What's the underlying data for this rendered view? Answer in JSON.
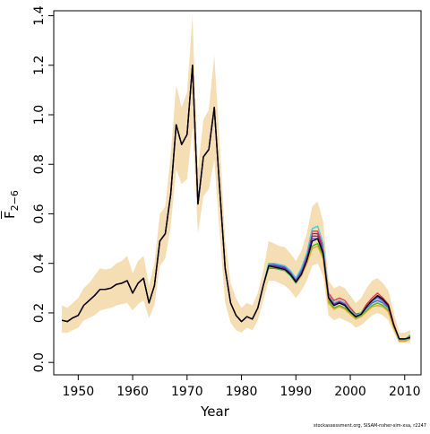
{
  "chart_data": {
    "type": "line",
    "xlabel": "Year",
    "ylabel": {
      "main": "F",
      "subscript": "2−6"
    },
    "xlim": [
      1945.5,
      2013
    ],
    "ylim": [
      -0.05,
      1.42
    ],
    "xticks": [
      "1950",
      "1960",
      "1970",
      "1980",
      "1990",
      "2000",
      "2010"
    ],
    "yticks": [
      "0.0",
      "0.2",
      "0.4",
      "0.6",
      "0.8",
      "1.0",
      "1.2",
      "1.4"
    ],
    "grid": false,
    "band_color": "#f5deb3",
    "x": [
      1947,
      1948,
      1949,
      1950,
      1951,
      1952,
      1953,
      1954,
      1955,
      1956,
      1957,
      1958,
      1959,
      1960,
      1961,
      1962,
      1963,
      1964,
      1965,
      1966,
      1967,
      1968,
      1969,
      1970,
      1971,
      1972,
      1973,
      1974,
      1975,
      1976,
      1977,
      1978,
      1979,
      1980,
      1981,
      1982,
      1983,
      1984,
      1985,
      1986,
      1987,
      1988,
      1989,
      1990,
      1991,
      1992,
      1993,
      1994,
      1995,
      1996,
      1997,
      1998,
      1999,
      2000,
      2001,
      2002,
      2003,
      2004,
      2005,
      2006,
      2007,
      2008,
      2009,
      2010,
      2011
    ],
    "series": [
      {
        "color": "#7b3a52",
        "values": [
          0.17,
          0.165,
          0.18,
          0.19,
          0.23,
          0.25,
          0.27,
          0.295,
          0.295,
          0.3,
          0.315,
          0.32,
          0.33,
          0.28,
          0.32,
          0.34,
          0.24,
          0.31,
          0.49,
          0.52,
          0.68,
          0.96,
          0.88,
          0.92,
          1.2,
          0.64,
          0.83,
          0.86,
          1.03,
          0.7,
          0.38,
          0.24,
          0.19,
          0.165,
          0.185,
          0.175,
          0.22,
          0.31,
          0.39,
          0.39,
          0.385,
          0.38,
          0.36,
          0.33,
          0.36,
          0.42,
          0.52,
          0.52,
          0.46,
          0.27,
          0.24,
          0.25,
          0.24,
          0.21,
          0.19,
          0.2,
          0.23,
          0.25,
          0.27,
          0.25,
          0.23,
          0.15,
          0.095,
          0.095,
          0.1
        ]
      },
      {
        "color": "#e8334b",
        "values": [
          0.17,
          0.165,
          0.18,
          0.19,
          0.23,
          0.25,
          0.27,
          0.295,
          0.295,
          0.3,
          0.315,
          0.32,
          0.33,
          0.28,
          0.32,
          0.34,
          0.24,
          0.31,
          0.49,
          0.52,
          0.68,
          0.96,
          0.88,
          0.92,
          1.2,
          0.64,
          0.83,
          0.86,
          1.03,
          0.7,
          0.38,
          0.24,
          0.19,
          0.165,
          0.185,
          0.175,
          0.22,
          0.31,
          0.39,
          0.39,
          0.385,
          0.38,
          0.36,
          0.33,
          0.37,
          0.43,
          0.53,
          0.53,
          0.47,
          0.28,
          0.25,
          0.26,
          0.25,
          0.22,
          0.195,
          0.2,
          0.235,
          0.26,
          0.28,
          0.26,
          0.235,
          0.155,
          0.095,
          0.095,
          0.1
        ]
      },
      {
        "color": "#3cb44b",
        "values": [
          0.17,
          0.165,
          0.18,
          0.19,
          0.23,
          0.25,
          0.27,
          0.295,
          0.295,
          0.3,
          0.315,
          0.32,
          0.33,
          0.28,
          0.32,
          0.34,
          0.24,
          0.31,
          0.49,
          0.52,
          0.68,
          0.96,
          0.88,
          0.92,
          1.2,
          0.64,
          0.83,
          0.86,
          1.03,
          0.7,
          0.38,
          0.24,
          0.19,
          0.165,
          0.185,
          0.175,
          0.22,
          0.31,
          0.38,
          0.38,
          0.375,
          0.37,
          0.35,
          0.32,
          0.35,
          0.4,
          0.47,
          0.48,
          0.43,
          0.25,
          0.22,
          0.23,
          0.22,
          0.2,
          0.18,
          0.19,
          0.21,
          0.23,
          0.24,
          0.23,
          0.21,
          0.14,
          0.09,
          0.09,
          0.11
        ]
      },
      {
        "color": "#4363d8",
        "values": [
          0.17,
          0.165,
          0.18,
          0.19,
          0.23,
          0.25,
          0.27,
          0.295,
          0.295,
          0.3,
          0.315,
          0.32,
          0.33,
          0.28,
          0.32,
          0.34,
          0.24,
          0.31,
          0.49,
          0.52,
          0.68,
          0.96,
          0.88,
          0.92,
          1.2,
          0.64,
          0.83,
          0.86,
          1.03,
          0.7,
          0.38,
          0.24,
          0.19,
          0.165,
          0.185,
          0.175,
          0.22,
          0.31,
          0.395,
          0.395,
          0.39,
          0.385,
          0.365,
          0.335,
          0.37,
          0.42,
          0.5,
          0.5,
          0.45,
          0.26,
          0.23,
          0.24,
          0.23,
          0.205,
          0.185,
          0.195,
          0.22,
          0.24,
          0.25,
          0.24,
          0.22,
          0.145,
          0.09,
          0.09,
          0.105
        ]
      },
      {
        "color": "#e6a817",
        "values": [
          0.17,
          0.165,
          0.18,
          0.19,
          0.23,
          0.25,
          0.27,
          0.295,
          0.295,
          0.3,
          0.315,
          0.32,
          0.33,
          0.28,
          0.32,
          0.34,
          0.24,
          0.31,
          0.49,
          0.52,
          0.68,
          0.96,
          0.88,
          0.92,
          1.2,
          0.64,
          0.83,
          0.86,
          1.03,
          0.7,
          0.38,
          0.24,
          0.19,
          0.165,
          0.185,
          0.175,
          0.22,
          0.31,
          0.385,
          0.385,
          0.38,
          0.375,
          0.355,
          0.325,
          0.35,
          0.4,
          0.46,
          0.47,
          0.42,
          0.24,
          0.215,
          0.225,
          0.215,
          0.195,
          0.175,
          0.185,
          0.205,
          0.225,
          0.23,
          0.225,
          0.205,
          0.14,
          0.085,
          0.085,
          0.095
        ]
      },
      {
        "color": "#46c8e0",
        "values": [
          0.17,
          0.165,
          0.18,
          0.19,
          0.23,
          0.25,
          0.27,
          0.295,
          0.295,
          0.3,
          0.315,
          0.32,
          0.33,
          0.28,
          0.32,
          0.34,
          0.24,
          0.31,
          0.49,
          0.52,
          0.68,
          0.96,
          0.88,
          0.92,
          1.2,
          0.64,
          0.83,
          0.86,
          1.03,
          0.7,
          0.38,
          0.24,
          0.19,
          0.165,
          0.185,
          0.175,
          0.22,
          0.31,
          0.4,
          0.4,
          0.395,
          0.39,
          0.37,
          0.34,
          0.38,
          0.44,
          0.54,
          0.55,
          0.48,
          0.27,
          0.24,
          0.25,
          0.24,
          0.21,
          0.19,
          0.2,
          0.225,
          0.245,
          0.26,
          0.245,
          0.225,
          0.15,
          0.09,
          0.09,
          0.1
        ]
      },
      {
        "color": "#911eb4",
        "values": [
          0.17,
          0.165,
          0.18,
          0.19,
          0.23,
          0.25,
          0.27,
          0.295,
          0.295,
          0.3,
          0.315,
          0.32,
          0.33,
          0.28,
          0.32,
          0.34,
          0.24,
          0.31,
          0.49,
          0.52,
          0.68,
          0.96,
          0.88,
          0.92,
          1.2,
          0.64,
          0.83,
          0.86,
          1.03,
          0.7,
          0.38,
          0.24,
          0.19,
          0.165,
          0.185,
          0.175,
          0.22,
          0.31,
          0.39,
          0.39,
          0.385,
          0.38,
          0.36,
          0.33,
          0.36,
          0.42,
          0.51,
          0.51,
          0.45,
          0.265,
          0.235,
          0.245,
          0.235,
          0.205,
          0.185,
          0.195,
          0.225,
          0.25,
          0.265,
          0.25,
          0.225,
          0.15,
          0.095,
          0.095,
          0.1
        ]
      },
      {
        "color": "#000000",
        "values": [
          0.17,
          0.165,
          0.18,
          0.19,
          0.23,
          0.25,
          0.27,
          0.295,
          0.295,
          0.3,
          0.315,
          0.32,
          0.33,
          0.28,
          0.32,
          0.34,
          0.24,
          0.31,
          0.49,
          0.52,
          0.68,
          0.96,
          0.88,
          0.92,
          1.2,
          0.64,
          0.83,
          0.86,
          1.03,
          0.7,
          0.38,
          0.24,
          0.19,
          0.165,
          0.185,
          0.175,
          0.22,
          0.31,
          0.39,
          0.385,
          0.38,
          0.375,
          0.355,
          0.325,
          0.355,
          0.41,
          0.49,
          0.5,
          0.44,
          0.26,
          0.23,
          0.24,
          0.23,
          0.205,
          0.185,
          0.195,
          0.225,
          0.25,
          0.27,
          0.255,
          0.23,
          0.15,
          0.095,
          0.095,
          0.1
        ]
      }
    ],
    "band_lower": [
      0.12,
      0.12,
      0.13,
      0.14,
      0.17,
      0.18,
      0.19,
      0.21,
      0.215,
      0.22,
      0.23,
      0.235,
      0.24,
      0.21,
      0.235,
      0.25,
      0.18,
      0.23,
      0.39,
      0.42,
      0.55,
      0.78,
      0.72,
      0.74,
      0.95,
      0.52,
      0.67,
      0.7,
      0.82,
      0.52,
      0.24,
      0.16,
      0.13,
      0.12,
      0.14,
      0.13,
      0.17,
      0.25,
      0.33,
      0.33,
      0.32,
      0.31,
      0.29,
      0.26,
      0.29,
      0.33,
      0.39,
      0.4,
      0.35,
      0.19,
      0.17,
      0.18,
      0.17,
      0.16,
      0.14,
      0.15,
      0.17,
      0.19,
      0.2,
      0.19,
      0.17,
      0.12,
      0.08,
      0.08,
      0.08
    ],
    "band_upper": [
      0.23,
      0.22,
      0.24,
      0.26,
      0.3,
      0.32,
      0.35,
      0.38,
      0.375,
      0.38,
      0.4,
      0.41,
      0.43,
      0.36,
      0.41,
      0.43,
      0.31,
      0.4,
      0.6,
      0.63,
      0.84,
      1.12,
      1.03,
      1.09,
      1.4,
      0.78,
      0.98,
      1.02,
      1.24,
      0.88,
      0.5,
      0.32,
      0.26,
      0.22,
      0.24,
      0.23,
      0.28,
      0.37,
      0.49,
      0.48,
      0.47,
      0.465,
      0.44,
      0.41,
      0.45,
      0.52,
      0.63,
      0.65,
      0.57,
      0.33,
      0.3,
      0.31,
      0.3,
      0.27,
      0.24,
      0.26,
      0.3,
      0.33,
      0.34,
      0.32,
      0.29,
      0.2,
      0.12,
      0.12,
      0.13
    ]
  },
  "credit": "stockassessment.org, SISAM-nsher-sim-xsa, r2247"
}
